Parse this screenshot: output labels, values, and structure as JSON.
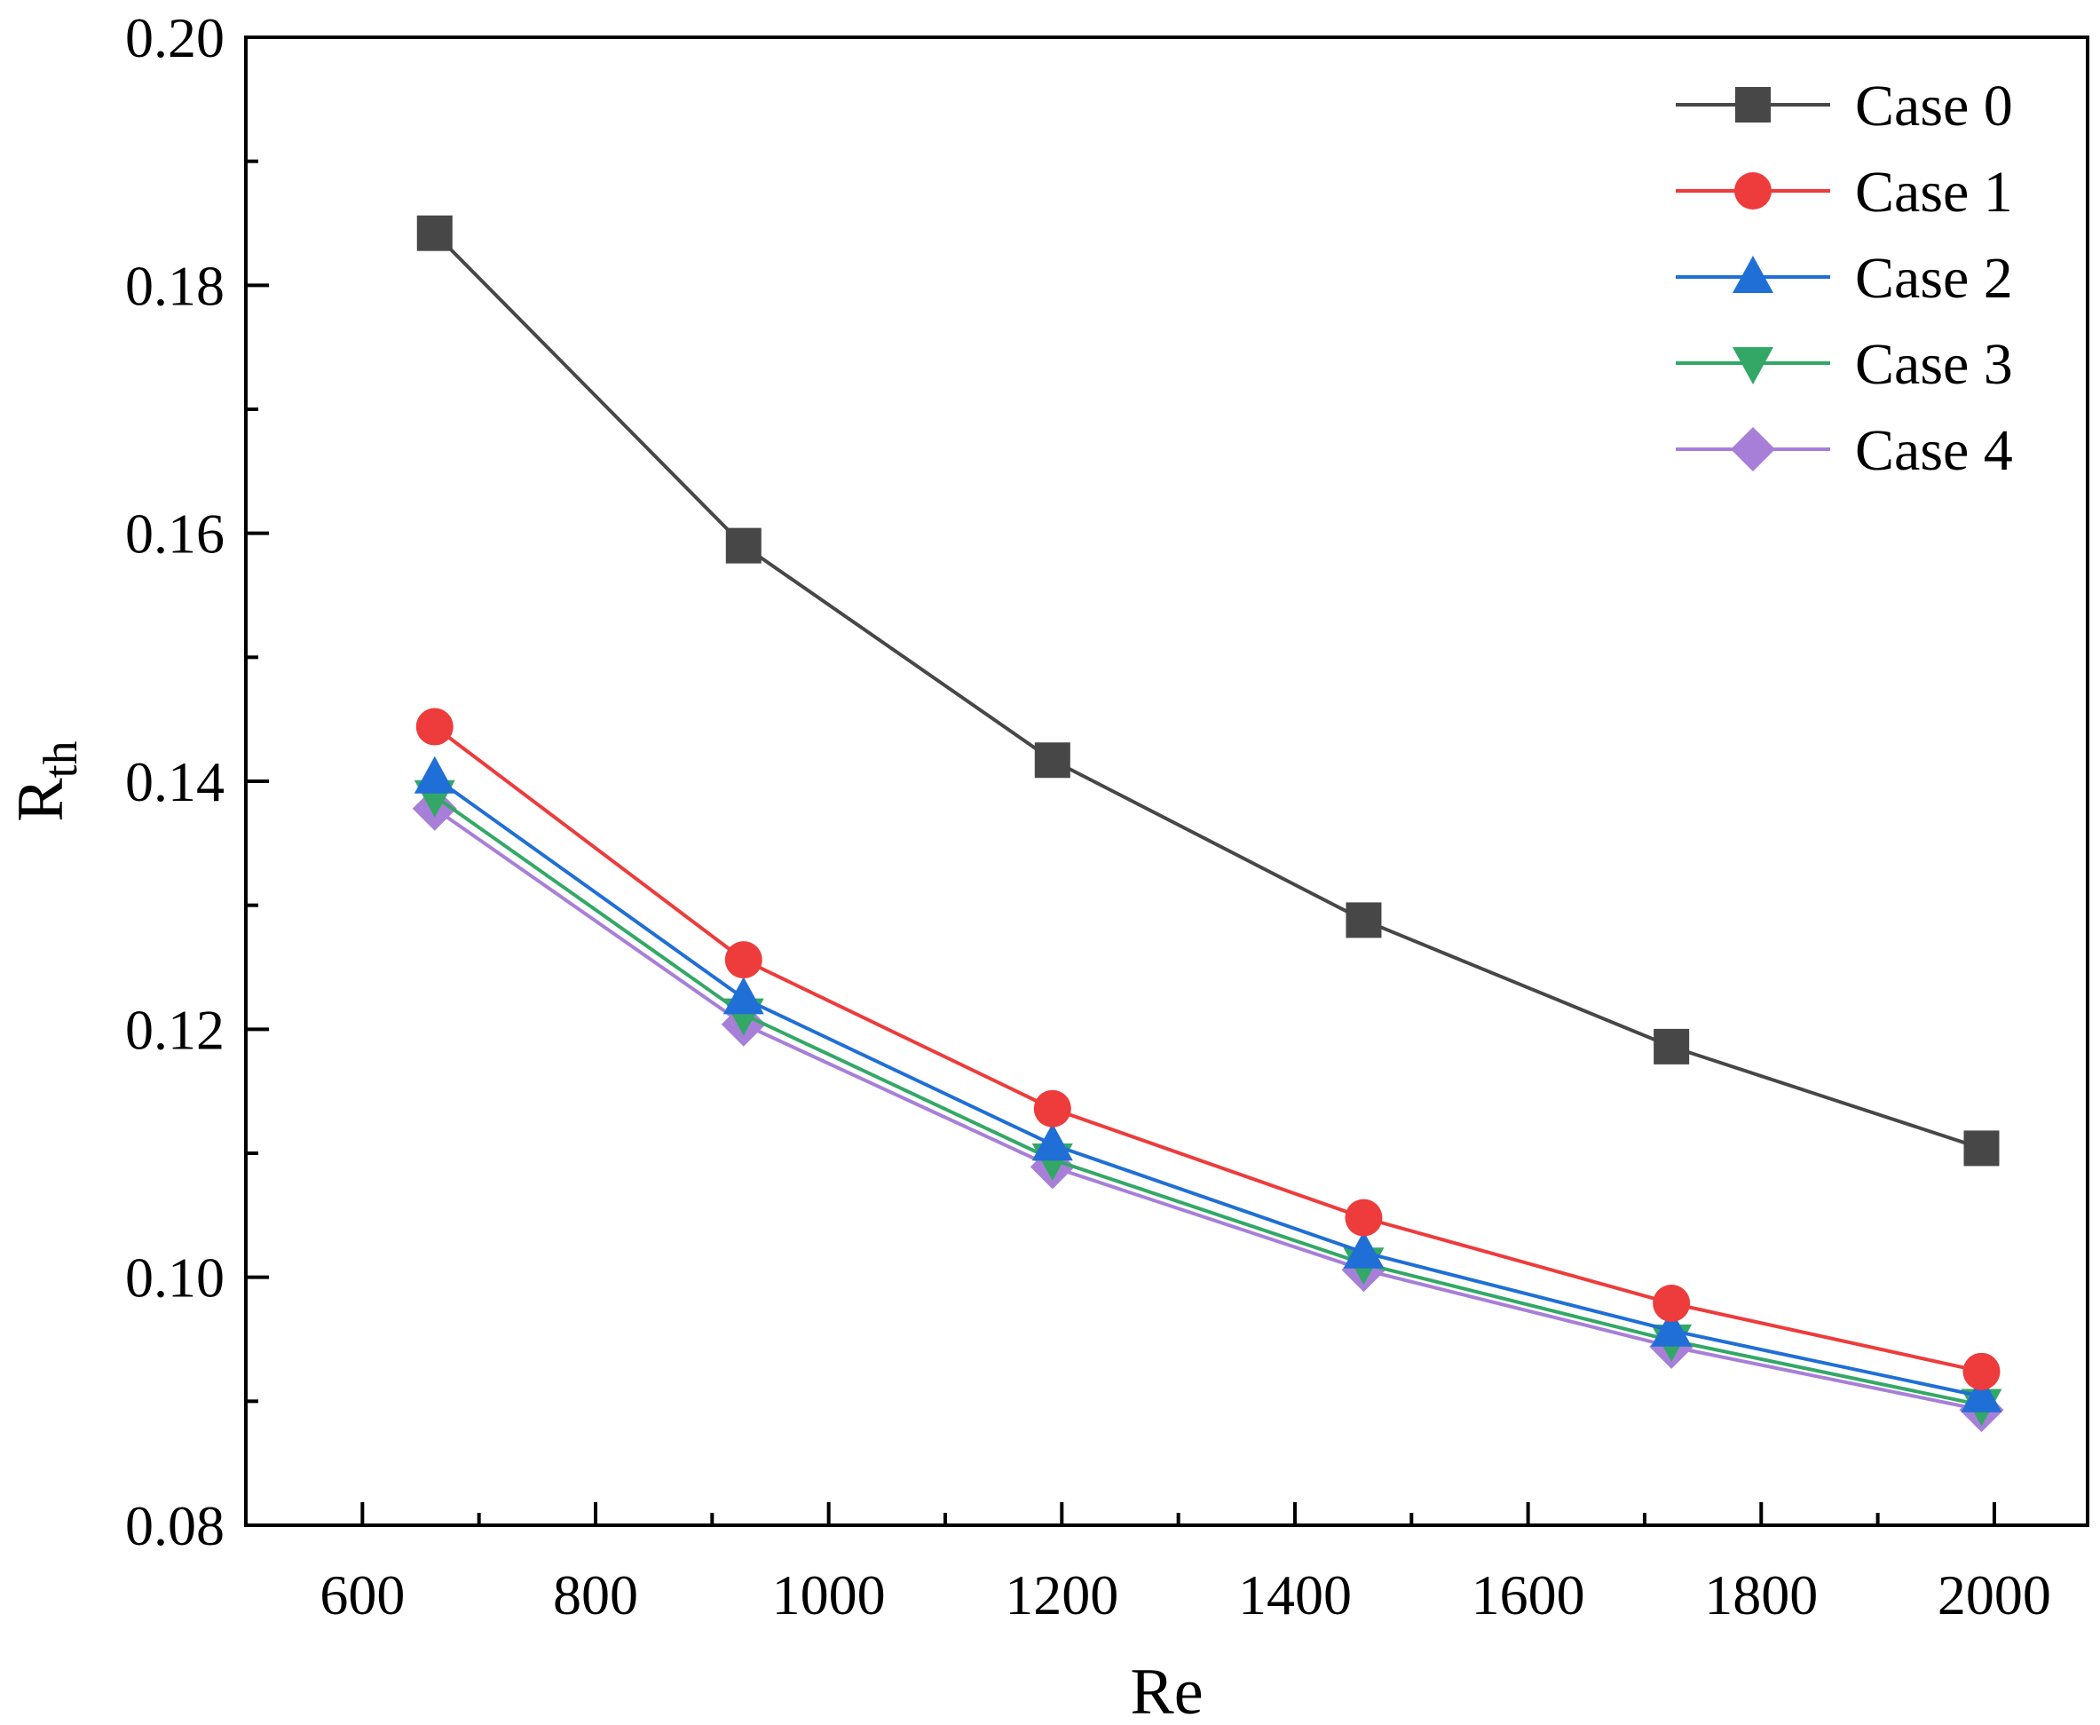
{
  "chart_data": {
    "type": "line",
    "title": "",
    "xlabel": "Re",
    "ylabel": "R",
    "ylabel_subscript": "th",
    "xlim": [
      500,
      2080
    ],
    "ylim": [
      0.08,
      0.2
    ],
    "xticks": [
      600,
      800,
      1000,
      1200,
      1400,
      1600,
      1800,
      2000
    ],
    "xtick_labels": [
      "600",
      "800",
      "1000",
      "1200",
      "1400",
      "1600",
      "1800",
      "2000"
    ],
    "yticks": [
      0.08,
      0.1,
      0.12,
      0.14,
      0.16,
      0.18,
      0.2
    ],
    "ytick_labels": [
      "0.08",
      "0.10",
      "0.12",
      "0.14",
      "0.16",
      "0.18",
      "0.20"
    ],
    "grid": false,
    "legend_position": "top-right",
    "x": [
      662,
      927,
      1192,
      1459,
      1723,
      1989
    ],
    "series": [
      {
        "name": "Case 0",
        "color": "#474747",
        "marker": "square",
        "values": [
          0.1842,
          0.159,
          0.1417,
          0.1288,
          0.1186,
          0.1104
        ]
      },
      {
        "name": "Case 1",
        "color": "#ee3b3b",
        "marker": "circle",
        "values": [
          0.1444,
          0.1256,
          0.1136,
          0.1048,
          0.0979,
          0.0924
        ]
      },
      {
        "name": "Case 2",
        "color": "#1f6fd6",
        "marker": "triangle-up",
        "values": [
          0.1403,
          0.1225,
          0.1107,
          0.102,
          0.0957,
          0.0904
        ]
      },
      {
        "name": "Case 3",
        "color": "#33a866",
        "marker": "triangle-down",
        "values": [
          0.1388,
          0.1212,
          0.1095,
          0.1011,
          0.0949,
          0.0897
        ]
      },
      {
        "name": "Case 4",
        "color": "#a77fd8",
        "marker": "diamond",
        "values": [
          0.1378,
          0.1204,
          0.1089,
          0.1006,
          0.0944,
          0.0893
        ]
      }
    ]
  }
}
